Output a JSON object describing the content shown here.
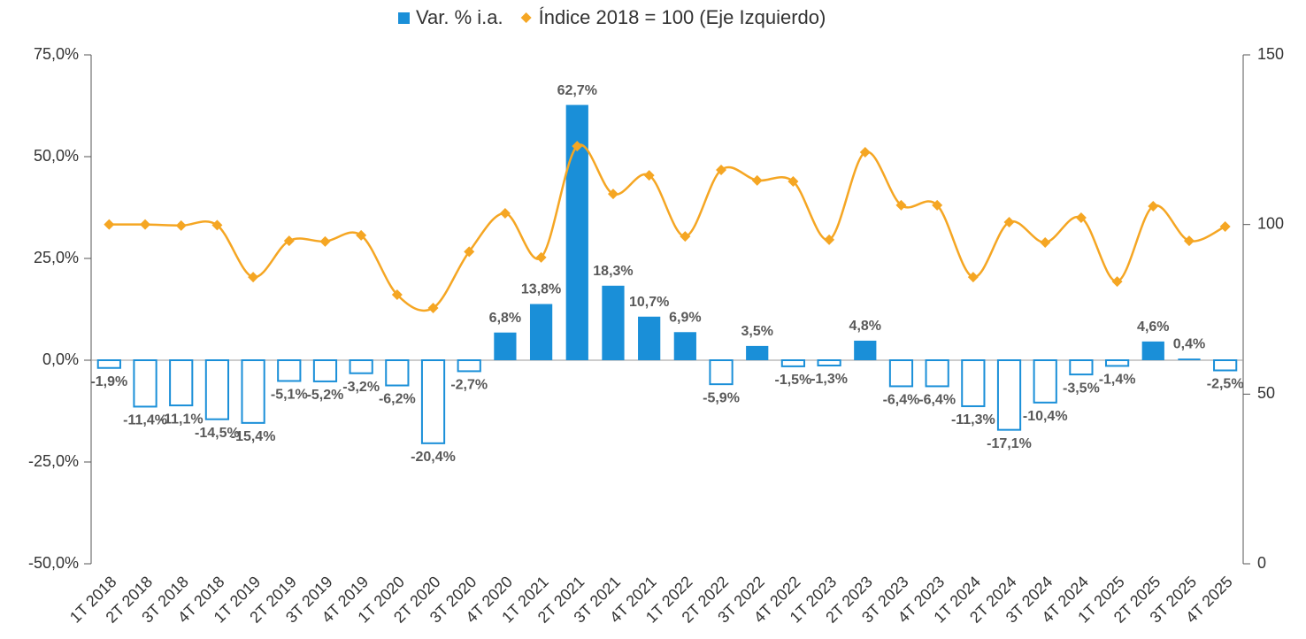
{
  "chart_data": {
    "type": "bar_line",
    "categories": [
      "1T 2018",
      "2T 2018",
      "3T 2018",
      "4T 2018",
      "1T 2019",
      "2T 2019",
      "3T 2019",
      "4T 2019",
      "1T 2020",
      "2T 2020",
      "3T 2020",
      "4T 2020",
      "1T 2021",
      "2T 2021",
      "3T 2021",
      "4T 2021",
      "1T 2022",
      "2T 2022",
      "3T 2022",
      "4T 2022",
      "1T 2023",
      "2T 2023",
      "3T 2023",
      "4T 2023",
      "1T 2024",
      "2T 2024",
      "3T 2024",
      "4T 2024",
      "1T 2025",
      "2T 2025",
      "3T 2025",
      "4T 2025"
    ],
    "series": [
      {
        "name": "Var. % i.a.",
        "type": "bar",
        "color": "#1a8fd8",
        "values": [
          -1.9,
          -11.4,
          -11.1,
          -14.5,
          -15.4,
          -5.1,
          -5.2,
          -3.2,
          -6.2,
          -20.4,
          -2.7,
          6.8,
          13.8,
          62.7,
          18.3,
          10.7,
          6.9,
          -5.9,
          3.5,
          -1.5,
          -1.3,
          4.8,
          -6.4,
          -6.4,
          -11.3,
          -17.1,
          -10.4,
          -3.5,
          -1.4,
          4.6,
          0.4,
          -2.5
        ],
        "value_labels": [
          "-1,9%",
          "-11,4%",
          "-11,1%",
          "-14,5%",
          "-15,4%",
          "-5,1%",
          "-5,2%",
          "-3,2%",
          "-6,2%",
          "-20,4%",
          "-2,7%",
          "6,8%",
          "13,8%",
          "62,7%",
          "18,3%",
          "10,7%",
          "6,9%",
          "-5,9%",
          "3,5%",
          "-1,5%",
          "-1,3%",
          "4,8%",
          "-6,4%",
          "-6,4%",
          "-11,3%",
          "-17,1%",
          "-10,4%",
          "-3,5%",
          "-1,4%",
          "4,6%",
          "0,4%",
          "-2,5%"
        ]
      },
      {
        "name": "Índice 2018 = 100 (Eje Izquierdo)",
        "type": "line",
        "axis": "y2",
        "color": "#f5a623",
        "values": [
          100,
          100,
          99.7,
          99.8,
          84.5,
          95.2,
          95,
          96.8,
          79.3,
          75.4,
          92,
          103.3,
          90.3,
          123.1,
          109,
          114.5,
          96.5,
          116.1,
          113,
          112.7,
          95.5,
          121.3,
          105.7,
          105.7,
          84.5,
          100.7,
          94.7,
          102,
          83.2,
          105.4,
          95.2,
          99.4
        ]
      }
    ],
    "ylim": [
      -50,
      75
    ],
    "yticks": [
      {
        "value": -50,
        "label": "-50,0%"
      },
      {
        "value": -25,
        "label": "-25,0%"
      },
      {
        "value": 0,
        "label": "0,0%"
      },
      {
        "value": 25,
        "label": "25,0%"
      },
      {
        "value": 50,
        "label": "50,0%"
      },
      {
        "value": 75,
        "label": "75,0%"
      }
    ],
    "y2lim": [
      0,
      150
    ],
    "y2ticks": [
      0,
      50,
      100,
      150
    ],
    "legend": "top"
  }
}
